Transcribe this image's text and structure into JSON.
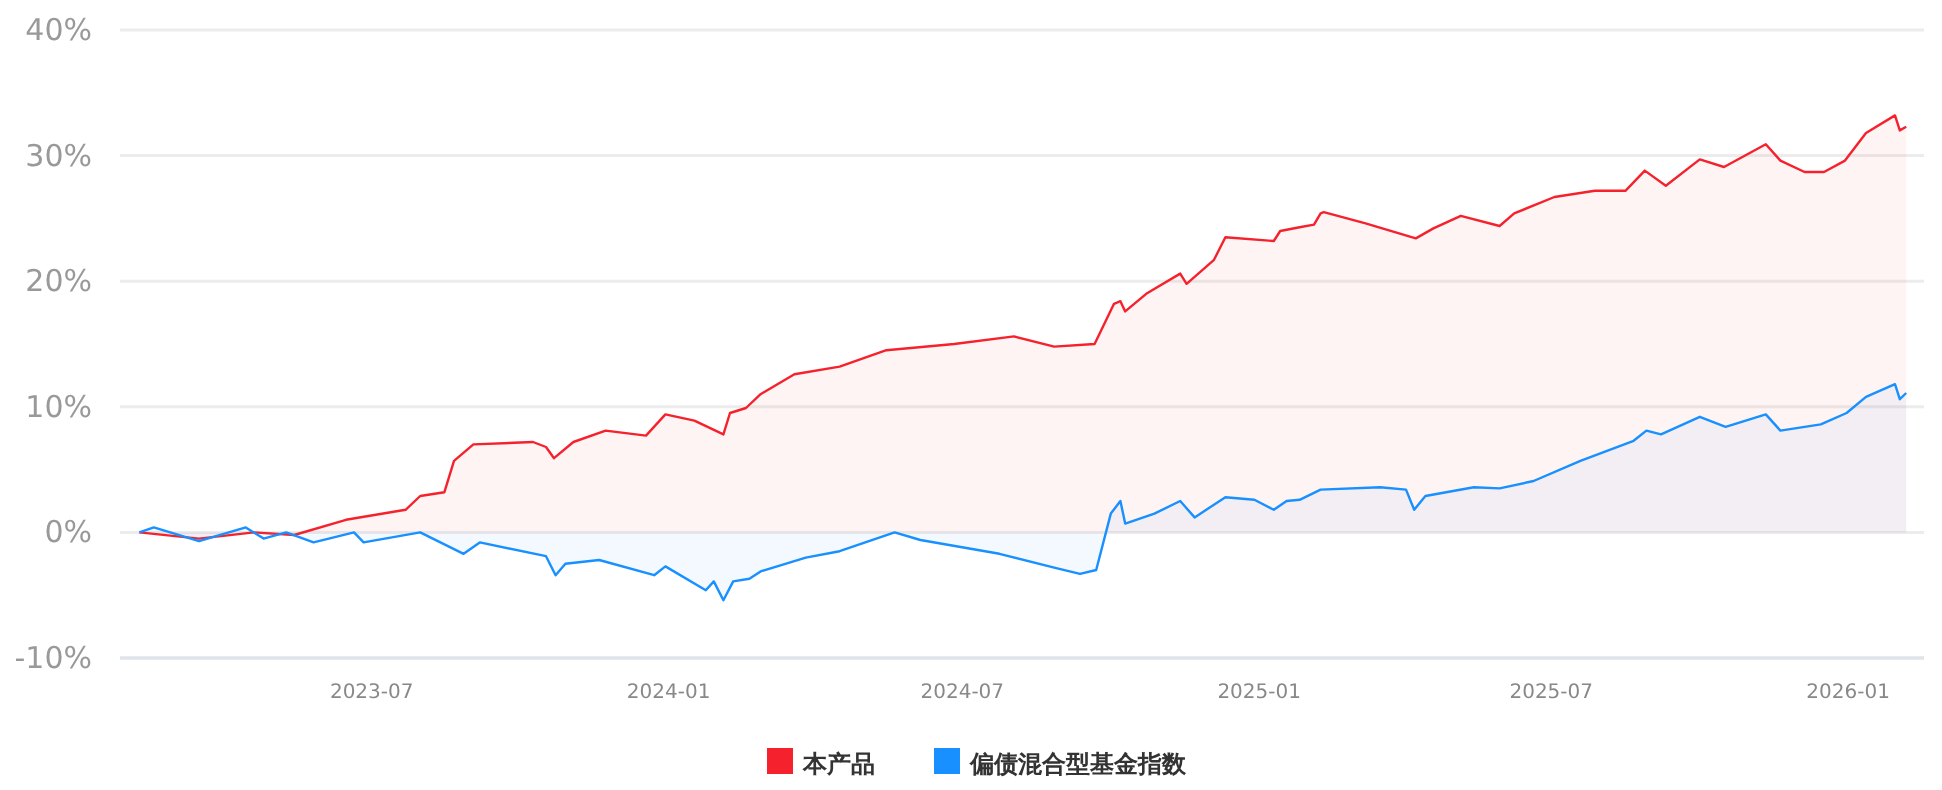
{
  "chart_data": {
    "type": "area",
    "xlim": [
      "2023-01-26",
      "2026-02-17"
    ],
    "ylim": [
      -10,
      40
    ],
    "xticks": [
      "2023-07",
      "2024-01",
      "2024-07",
      "2025-01",
      "2025-07",
      "2026-01"
    ],
    "yticks": [
      {
        "value": -10,
        "label": "-10%"
      },
      {
        "value": 0,
        "label": "0%"
      },
      {
        "value": 10,
        "label": "10%"
      },
      {
        "value": 20,
        "label": "20%"
      },
      {
        "value": 30,
        "label": "30%"
      },
      {
        "value": 40,
        "label": "40%"
      }
    ],
    "grid": "y",
    "legend": "bottom",
    "series": [
      {
        "name": "本产品",
        "color": "#f5222d",
        "x": [
          "2023-02-07",
          "2023-03-16",
          "2023-04-19",
          "2023-05-14",
          "2023-06-15",
          "2023-07-22",
          "2023-07-31",
          "2023-08-15",
          "2023-08-21",
          "2023-09-02",
          "2023-10-09",
          "2023-10-17",
          "2023-10-22",
          "2023-11-03",
          "2023-11-23",
          "2023-12-18",
          "2023-12-30",
          "2024-01-17",
          "2024-02-04",
          "2024-02-08",
          "2024-02-18",
          "2024-02-27",
          "2024-03-19",
          "2024-04-16",
          "2024-05-15",
          "2024-06-26",
          "2024-08-02",
          "2024-08-27",
          "2024-09-21",
          "2024-10-03",
          "2024-10-07",
          "2024-10-10",
          "2024-10-23",
          "2024-11-13",
          "2024-11-17",
          "2024-12-04",
          "2024-12-11",
          "2025-01-10",
          "2025-01-14",
          "2025-01-26",
          "2025-02-04",
          "2025-02-08",
          "2025-02-10",
          "2025-03-08",
          "2025-04-08",
          "2025-04-19",
          "2025-05-06",
          "2025-05-30",
          "2025-06-08",
          "2025-07-03",
          "2025-07-28",
          "2025-08-16",
          "2025-08-28",
          "2025-09-10",
          "2025-10-01",
          "2025-10-16",
          "2025-11-11",
          "2025-11-20",
          "2025-12-05",
          "2025-12-17",
          "2025-12-30",
          "2026-01-12",
          "2026-01-30",
          "2026-02-02",
          "2026-02-06"
        ],
        "values": [
          0,
          -0.5,
          0,
          -0.2,
          1.0,
          1.8,
          2.9,
          3.2,
          5.7,
          7.0,
          7.2,
          6.8,
          5.9,
          7.2,
          8.1,
          7.7,
          9.4,
          8.9,
          7.8,
          9.5,
          9.9,
          11.0,
          12.6,
          13.2,
          14.5,
          15.0,
          15.6,
          14.8,
          15.0,
          18.2,
          18.4,
          17.6,
          19.0,
          20.6,
          19.8,
          21.7,
          23.5,
          23.2,
          24.0,
          24.3,
          24.5,
          25.4,
          25.5,
          24.6,
          23.4,
          24.2,
          25.2,
          24.4,
          25.4,
          26.7,
          27.2,
          27.2,
          28.8,
          27.6,
          29.7,
          29.1,
          30.9,
          29.6,
          28.7,
          28.7,
          29.6,
          31.8,
          33.2,
          32.0,
          32.3
        ]
      },
      {
        "name": "偏债混合型基金指数",
        "color": "#1890ff",
        "x": [
          "2023-02-07",
          "2023-02-16",
          "2023-03-16",
          "2023-04-14",
          "2023-04-25",
          "2023-05-09",
          "2023-05-26",
          "2023-06-20",
          "2023-06-26",
          "2023-07-31",
          "2023-08-27",
          "2023-09-06",
          "2023-10-17",
          "2023-10-23",
          "2023-10-29",
          "2023-11-19",
          "2023-12-23",
          "2023-12-30",
          "2024-01-24",
          "2024-01-29",
          "2024-02-04",
          "2024-02-10",
          "2024-02-20",
          "2024-02-27",
          "2024-03-26",
          "2024-04-16",
          "2024-05-20",
          "2024-06-05",
          "2024-07-24",
          "2024-08-27",
          "2024-09-12",
          "2024-09-22",
          "2024-10-01",
          "2024-10-07",
          "2024-10-10",
          "2024-10-28",
          "2024-11-13",
          "2024-11-22",
          "2024-12-11",
          "2024-12-29",
          "2025-01-10",
          "2025-01-18",
          "2025-01-26",
          "2025-02-08",
          "2025-03-17",
          "2025-04-02",
          "2025-04-07",
          "2025-04-14",
          "2025-05-14",
          "2025-05-30",
          "2025-06-20",
          "2025-07-19",
          "2025-08-21",
          "2025-08-29",
          "2025-09-07",
          "2025-10-01",
          "2025-10-17",
          "2025-11-11",
          "2025-11-20",
          "2025-12-15",
          "2025-12-31",
          "2026-01-12",
          "2026-01-30",
          "2026-02-02",
          "2026-02-06"
        ],
        "values": [
          0,
          0.4,
          -0.7,
          0.4,
          -0.5,
          0,
          -0.8,
          0,
          -0.8,
          0,
          -1.7,
          -0.8,
          -1.9,
          -3.4,
          -2.5,
          -2.2,
          -3.4,
          -2.7,
          -4.6,
          -3.9,
          -5.4,
          -3.9,
          -3.7,
          -3.1,
          -2.0,
          -1.5,
          0,
          -0.6,
          -1.7,
          -2.8,
          -3.3,
          -3.0,
          1.5,
          2.5,
          0.7,
          1.5,
          2.5,
          1.2,
          2.8,
          2.6,
          1.8,
          2.5,
          2.6,
          3.4,
          3.6,
          3.4,
          1.8,
          2.9,
          3.6,
          3.5,
          4.1,
          5.7,
          7.3,
          8.1,
          7.8,
          9.2,
          8.4,
          9.4,
          8.1,
          8.6,
          9.5,
          10.8,
          11.8,
          10.6,
          11.1
        ]
      }
    ]
  }
}
